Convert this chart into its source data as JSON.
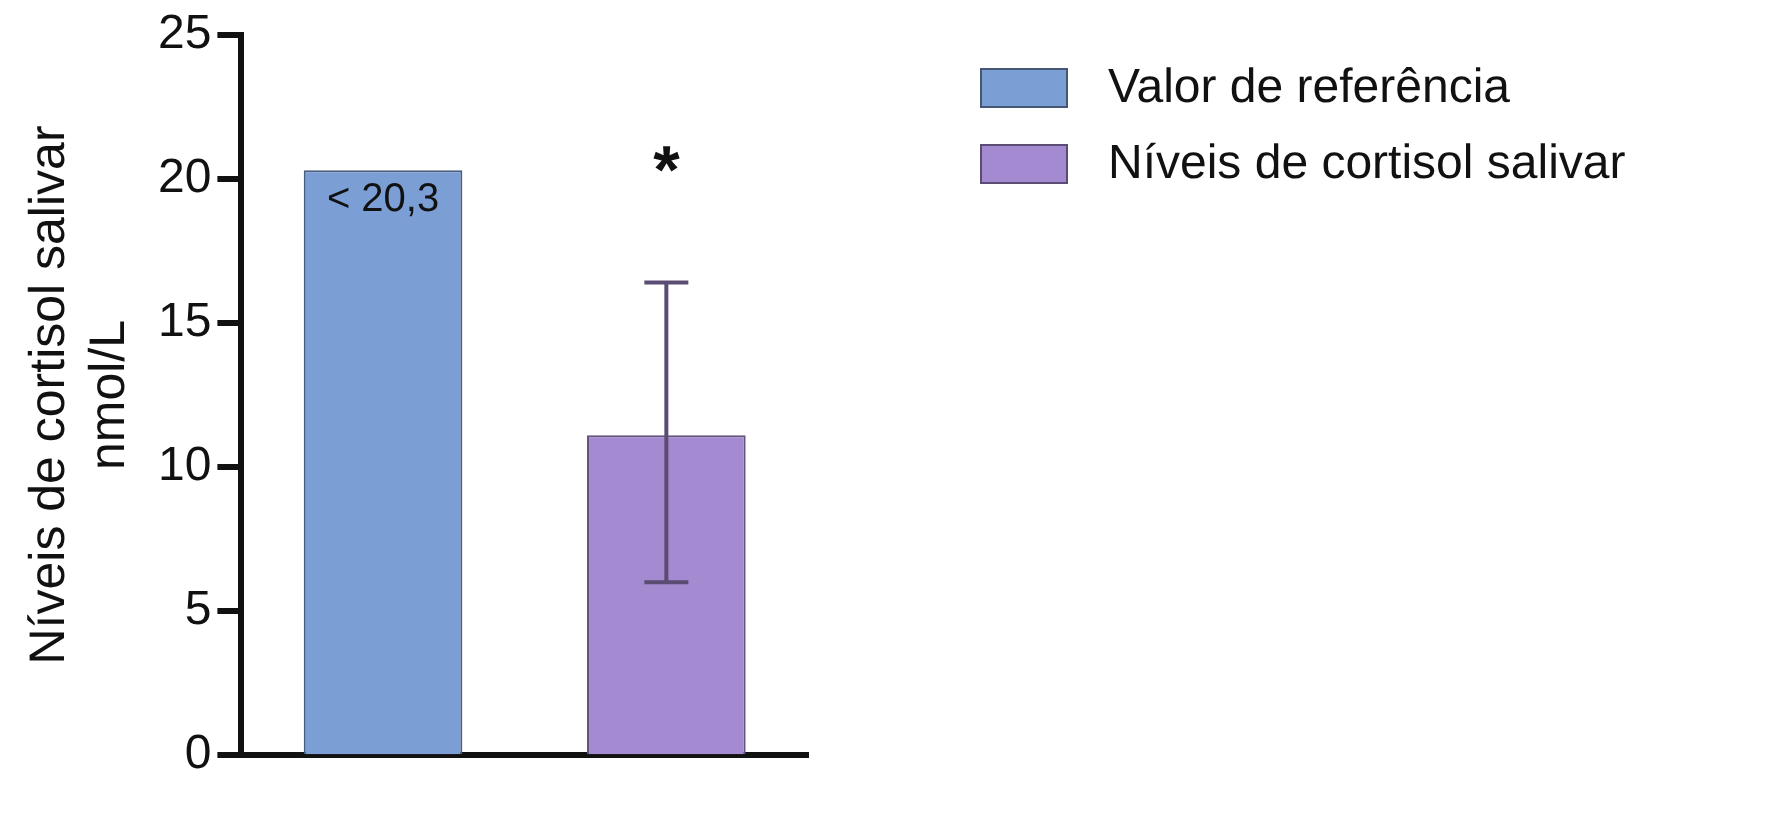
{
  "chart_data": {
    "type": "bar",
    "ylabel": "Níveis de cortisol salivar\nnmol/L",
    "categories": [
      null,
      null
    ],
    "series": [
      {
        "name": "Valor de referência",
        "color": "#7b9fd4",
        "values": [
          20.3,
          null
        ],
        "value_labels": [
          "< 20,3",
          null
        ]
      },
      {
        "name": "Níveis de cortisol salivar",
        "color": "#a48ad0",
        "values": [
          null,
          11.1
        ],
        "errors": [
          null,
          [
            6.0,
            16.4
          ]
        ]
      }
    ],
    "annotations": [
      "*"
    ],
    "ylim": [
      0,
      25
    ],
    "yticks": [
      0,
      5,
      10,
      15,
      20,
      25
    ],
    "grid": false,
    "legend": "top right"
  }
}
